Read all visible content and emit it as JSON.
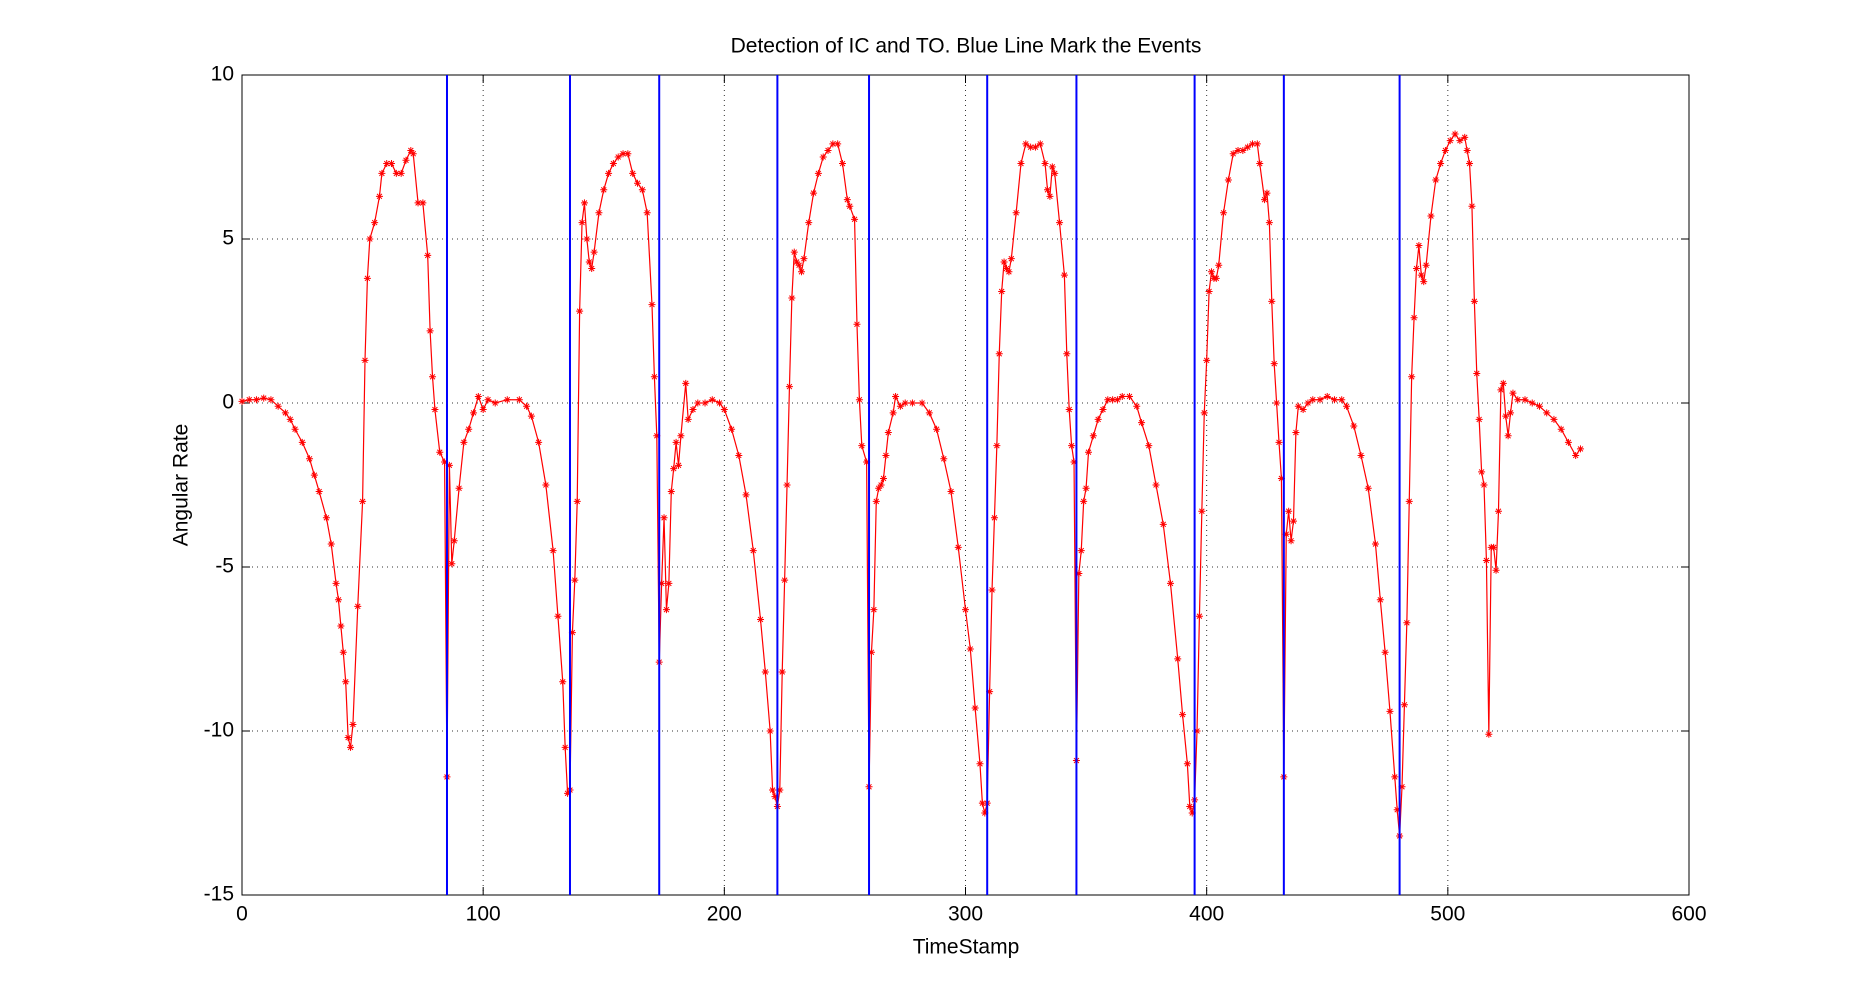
{
  "chart_data": {
    "type": "line",
    "title": "Detection of IC and TO. Blue Line Mark the Events",
    "x_label": "TimeStamp",
    "y_label": "Angular Rate",
    "xlim": [
      0,
      600
    ],
    "xticks": [
      0,
      100,
      200,
      300,
      400,
      500,
      600
    ],
    "ylim": [
      -15,
      10
    ],
    "yticks": [
      -15,
      -10,
      -5,
      0,
      5,
      10
    ],
    "grid": true,
    "events": {
      "color": "#0000ff",
      "x": [
        85,
        136,
        173,
        222,
        260,
        309,
        346,
        395,
        432,
        480
      ]
    },
    "series": [
      {
        "color": "#ff0000",
        "x": [
          0,
          3,
          6,
          9,
          12,
          15,
          18,
          20,
          22,
          25,
          28,
          30,
          32,
          35,
          37,
          39,
          40,
          41,
          42,
          43,
          44,
          45,
          46,
          48,
          50,
          51,
          52,
          53,
          55,
          57,
          58,
          60,
          62,
          64,
          66,
          68,
          70,
          71,
          73,
          75,
          77,
          78,
          79,
          80,
          82,
          84,
          85,
          86,
          87,
          88,
          90,
          92,
          94,
          96,
          98,
          100,
          102,
          105,
          110,
          115,
          118,
          120,
          123,
          126,
          129,
          131,
          133,
          134,
          135,
          136,
          137,
          138,
          139,
          140,
          141,
          142,
          143,
          144,
          145,
          146,
          148,
          150,
          152,
          154,
          156,
          158,
          160,
          162,
          164,
          166,
          168,
          170,
          171,
          172,
          173,
          174,
          175,
          176,
          177,
          178,
          179,
          180,
          181,
          182,
          184,
          185,
          187,
          189,
          192,
          195,
          198,
          200,
          203,
          206,
          209,
          212,
          215,
          217,
          219,
          220,
          221,
          222,
          223,
          224,
          225,
          226,
          227,
          228,
          229,
          230,
          231,
          232,
          233,
          235,
          237,
          239,
          241,
          243,
          245,
          247,
          249,
          251,
          252,
          254,
          255,
          256,
          257,
          259,
          260,
          261,
          262,
          263,
          264,
          265,
          266,
          267,
          268,
          270,
          271,
          273,
          275,
          278,
          282,
          285,
          288,
          291,
          294,
          297,
          300,
          302,
          304,
          306,
          307,
          308,
          309,
          310,
          311,
          312,
          313,
          314,
          315,
          316,
          317,
          318,
          319,
          321,
          323,
          325,
          327,
          329,
          331,
          333,
          334,
          335,
          336,
          337,
          339,
          341,
          342,
          343,
          344,
          345,
          346,
          347,
          348,
          349,
          350,
          351,
          353,
          355,
          357,
          359,
          361,
          363,
          365,
          368,
          371,
          373,
          376,
          379,
          382,
          385,
          388,
          390,
          392,
          393,
          394,
          395,
          396,
          397,
          398,
          399,
          400,
          401,
          402,
          403,
          404,
          405,
          407,
          409,
          411,
          413,
          415,
          417,
          419,
          421,
          422,
          424,
          425,
          426,
          427,
          428,
          429,
          430,
          431,
          432,
          433,
          434,
          435,
          436,
          437,
          438,
          440,
          442,
          444,
          447,
          450,
          453,
          456,
          458,
          461,
          464,
          467,
          470,
          472,
          474,
          476,
          478,
          479,
          480,
          481,
          482,
          483,
          484,
          485,
          486,
          487,
          488,
          489,
          490,
          491,
          493,
          495,
          497,
          499,
          501,
          503,
          505,
          507,
          508,
          509,
          510,
          511,
          512,
          513,
          514,
          515,
          516,
          517,
          518,
          519,
          520,
          521,
          522,
          523,
          524,
          525,
          526,
          527,
          529,
          532,
          535,
          538,
          541,
          544,
          547,
          550,
          553,
          555
        ],
        "values": [
          0.05,
          0.1,
          0.1,
          0.15,
          0.1,
          -0.1,
          -0.3,
          -0.5,
          -0.8,
          -1.2,
          -1.7,
          -2.2,
          -2.7,
          -3.5,
          -4.3,
          -5.5,
          -6,
          -6.8,
          -7.6,
          -8.5,
          -10.2,
          -10.5,
          -9.8,
          -6.2,
          -3,
          1.3,
          3.8,
          5,
          5.5,
          6.3,
          7,
          7.3,
          7.3,
          7,
          7,
          7.4,
          7.7,
          7.6,
          6.1,
          6.1,
          4.5,
          2.2,
          0.8,
          -0.2,
          -1.5,
          -1.8,
          -11.4,
          -1.9,
          -4.9,
          -4.2,
          -2.6,
          -1.2,
          -0.8,
          -0.3,
          0.2,
          -0.2,
          0.1,
          0,
          0.1,
          0.1,
          -0.1,
          -0.4,
          -1.2,
          -2.5,
          -4.5,
          -6.5,
          -8.5,
          -10.5,
          -11.9,
          -11.8,
          -7,
          -5.4,
          -3,
          2.8,
          5.5,
          6.1,
          5,
          4.3,
          4.1,
          4.6,
          5.8,
          6.5,
          7,
          7.3,
          7.5,
          7.6,
          7.6,
          7,
          6.7,
          6.5,
          5.8,
          3,
          0.8,
          -1,
          -7.9,
          -5.5,
          -3.5,
          -6.3,
          -5.5,
          -2.7,
          -2,
          -1.2,
          -1.9,
          -1,
          0.6,
          -0.5,
          -0.2,
          0,
          0,
          0.1,
          0,
          -0.2,
          -0.8,
          -1.6,
          -2.8,
          -4.5,
          -6.6,
          -8.2,
          -10,
          -11.8,
          -12,
          -12.3,
          -11.8,
          -8.2,
          -5.4,
          -2.5,
          0.5,
          3.2,
          4.6,
          4.3,
          4.2,
          4,
          4.4,
          5.5,
          6.4,
          7,
          7.5,
          7.7,
          7.9,
          7.9,
          7.3,
          6.2,
          6,
          5.6,
          2.4,
          0.1,
          -1.3,
          -1.8,
          -11.7,
          -7.6,
          -6.3,
          -3,
          -2.6,
          -2.5,
          -2.3,
          -1.6,
          -0.9,
          -0.3,
          0.2,
          -0.1,
          0,
          0,
          0,
          -0.3,
          -0.8,
          -1.7,
          -2.7,
          -4.4,
          -6.3,
          -7.5,
          -9.3,
          -11,
          -12.2,
          -12.5,
          -12.2,
          -8.8,
          -5.7,
          -3.5,
          -1.3,
          1.5,
          3.4,
          4.3,
          4.1,
          4,
          4.4,
          5.8,
          7.3,
          7.9,
          7.8,
          7.8,
          7.9,
          7.3,
          6.5,
          6.3,
          7.2,
          7,
          5.5,
          3.9,
          1.5,
          -0.2,
          -1.3,
          -1.8,
          -10.9,
          -5.2,
          -4.5,
          -3,
          -2.6,
          -1.5,
          -1,
          -0.5,
          -0.2,
          0.1,
          0.1,
          0.1,
          0.2,
          0.2,
          -0.1,
          -0.6,
          -1.3,
          -2.5,
          -3.7,
          -5.5,
          -7.8,
          -9.5,
          -11,
          -12.3,
          -12.5,
          -12.1,
          -10,
          -6.5,
          -3.3,
          -0.3,
          1.3,
          3.4,
          4,
          3.8,
          3.8,
          4.2,
          5.8,
          6.8,
          7.6,
          7.7,
          7.7,
          7.8,
          7.9,
          7.9,
          7.3,
          6.2,
          6.4,
          5.5,
          3.1,
          1.2,
          0,
          -1.2,
          -2.3,
          -11.4,
          -4,
          -3.3,
          -4.2,
          -3.6,
          -0.9,
          -0.1,
          -0.2,
          0,
          0.1,
          0.1,
          0.2,
          0.1,
          0.1,
          -0.1,
          -0.7,
          -1.6,
          -2.6,
          -4.3,
          -6,
          -7.6,
          -9.4,
          -11.4,
          -12.4,
          -13.2,
          -11.7,
          -9.2,
          -6.7,
          -3,
          0.8,
          2.6,
          4.1,
          4.8,
          3.9,
          3.7,
          4.2,
          5.7,
          6.8,
          7.3,
          7.7,
          8,
          8.2,
          8,
          8.1,
          7.7,
          7.3,
          6,
          3.1,
          0.9,
          -0.5,
          -2.1,
          -2.5,
          -4.8,
          -10.1,
          -4.4,
          -4.4,
          -5.1,
          -3.3,
          0.4,
          0.6,
          -0.4,
          -1,
          -0.3,
          0.3,
          0.1,
          0.1,
          0,
          -0.1,
          -0.3,
          -0.5,
          -0.8,
          -1.2,
          -1.6,
          -1.4
        ]
      }
    ]
  }
}
